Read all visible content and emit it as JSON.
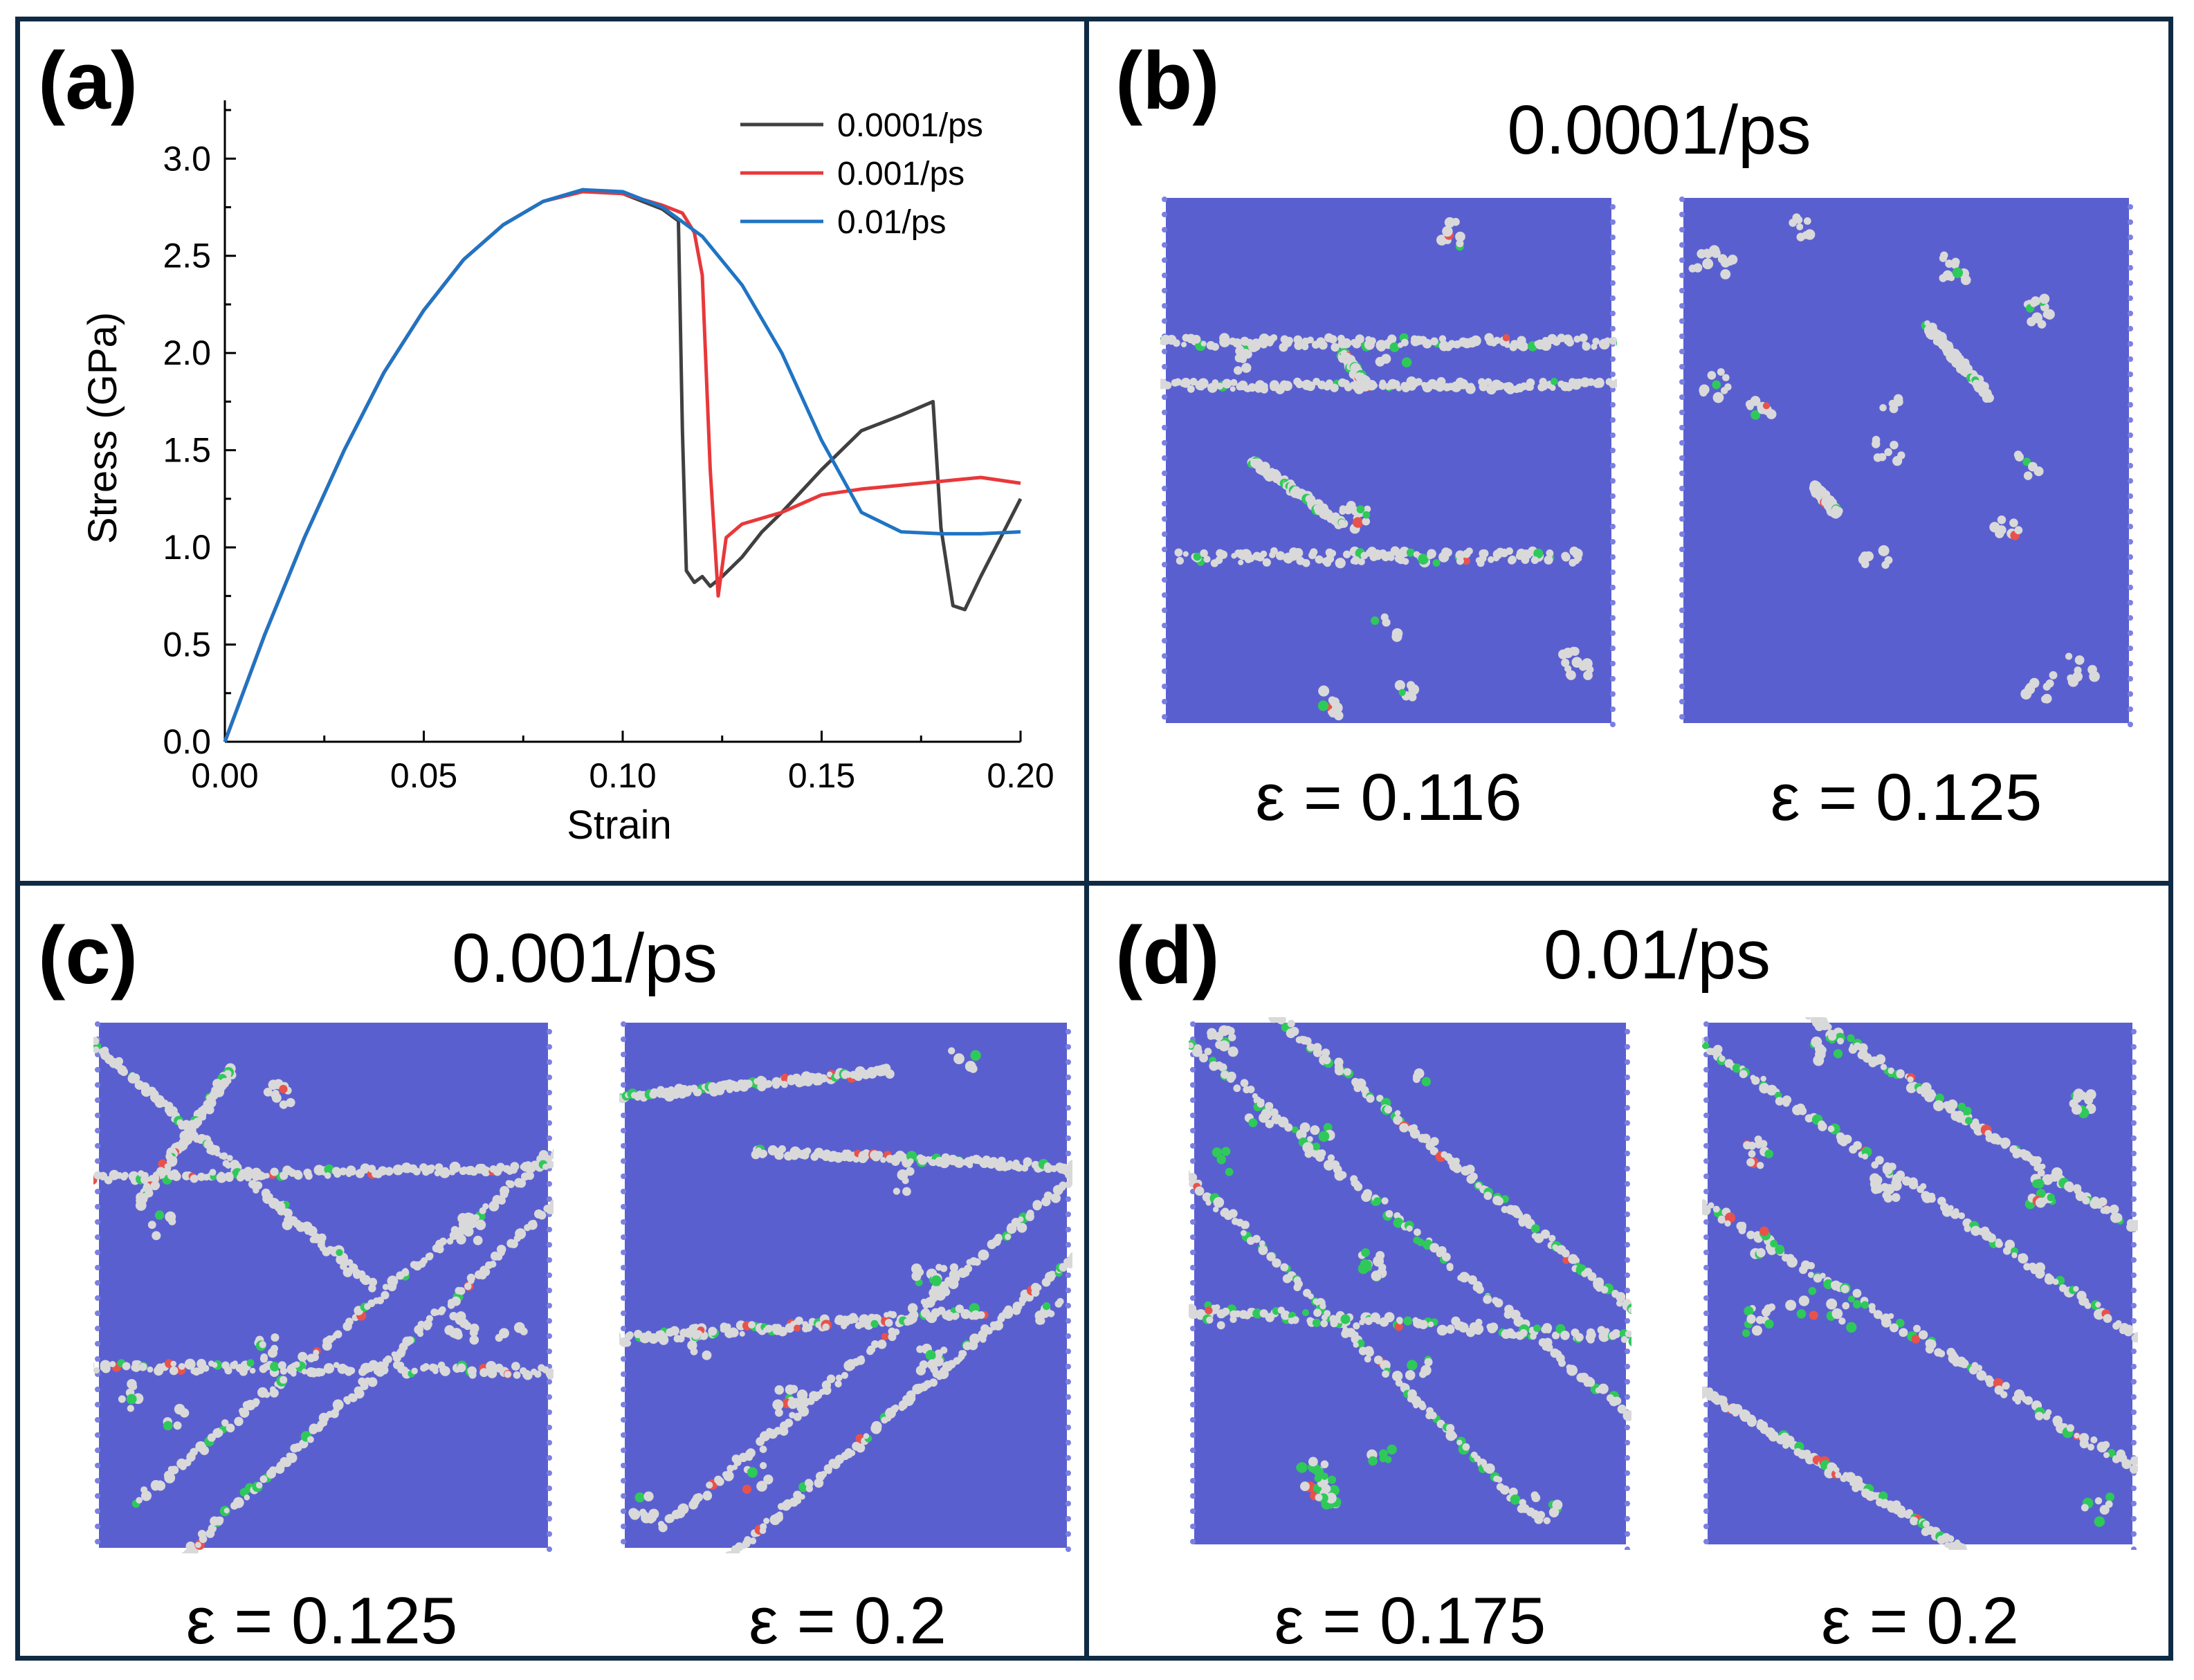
{
  "panels": {
    "a": {
      "label": "(a)"
    },
    "b": {
      "label": "(b)",
      "title": "0.0001/ps",
      "captions": [
        "ε = 0.116",
        "ε = 0.125"
      ]
    },
    "c": {
      "label": "(c)",
      "title": "0.001/ps",
      "captions": [
        "ε = 0.125",
        "ε = 0.2"
      ]
    },
    "d": {
      "label": "(d)",
      "title": "0.01/ps",
      "captions": [
        "ε = 0.175",
        "ε = 0.2"
      ]
    }
  },
  "colors": {
    "fcc": "#5a5fd0",
    "other": "#d9d9d9",
    "hcp": "#e8524c",
    "bcc": "#2fc95a",
    "border": "#0f2a44"
  },
  "chart_data": {
    "type": "line",
    "title": "",
    "xlabel": "Strain",
    "ylabel": "Stress (GPa)",
    "xlim": [
      0,
      0.2
    ],
    "ylim": [
      0,
      3.3
    ],
    "xticks": [
      0.0,
      0.05,
      0.1,
      0.15,
      0.2
    ],
    "xtick_labels": [
      "0.00",
      "0.05",
      "0.10",
      "0.15",
      "0.20"
    ],
    "yticks": [
      0.0,
      0.5,
      1.0,
      1.5,
      2.0,
      2.5,
      3.0
    ],
    "ytick_labels": [
      "0.0",
      "0.5",
      "1.0",
      "1.5",
      "2.0",
      "2.5",
      "3.0"
    ],
    "legend_position": "top-right",
    "series": [
      {
        "name": "0.0001/ps",
        "color": "#404040",
        "x": [
          0,
          0.01,
          0.02,
          0.03,
          0.04,
          0.05,
          0.06,
          0.07,
          0.08,
          0.09,
          0.1,
          0.11,
          0.114,
          0.115,
          0.116,
          0.118,
          0.12,
          0.122,
          0.125,
          0.13,
          0.135,
          0.14,
          0.15,
          0.16,
          0.17,
          0.178,
          0.18,
          0.183,
          0.186,
          0.19,
          0.195,
          0.2
        ],
        "y": [
          0,
          0.55,
          1.05,
          1.5,
          1.9,
          2.22,
          2.48,
          2.66,
          2.78,
          2.84,
          2.82,
          2.74,
          2.68,
          1.6,
          0.88,
          0.82,
          0.85,
          0.8,
          0.85,
          0.95,
          1.08,
          1.18,
          1.4,
          1.6,
          1.68,
          1.75,
          1.1,
          0.7,
          0.68,
          0.85,
          1.05,
          1.25
        ]
      },
      {
        "name": "0.001/ps",
        "color": "#e8383a",
        "x": [
          0,
          0.01,
          0.02,
          0.03,
          0.04,
          0.05,
          0.06,
          0.07,
          0.08,
          0.09,
          0.1,
          0.11,
          0.115,
          0.118,
          0.12,
          0.122,
          0.124,
          0.126,
          0.13,
          0.14,
          0.15,
          0.16,
          0.17,
          0.18,
          0.19,
          0.2
        ],
        "y": [
          0,
          0.55,
          1.05,
          1.5,
          1.9,
          2.22,
          2.48,
          2.66,
          2.78,
          2.83,
          2.82,
          2.76,
          2.72,
          2.62,
          2.4,
          1.4,
          0.75,
          1.05,
          1.12,
          1.18,
          1.27,
          1.3,
          1.32,
          1.34,
          1.36,
          1.33
        ]
      },
      {
        "name": "0.01/ps",
        "color": "#1f74c4",
        "x": [
          0,
          0.01,
          0.02,
          0.03,
          0.04,
          0.05,
          0.06,
          0.07,
          0.08,
          0.09,
          0.1,
          0.11,
          0.12,
          0.13,
          0.14,
          0.15,
          0.16,
          0.17,
          0.18,
          0.19,
          0.2
        ],
        "y": [
          0,
          0.55,
          1.05,
          1.5,
          1.9,
          2.22,
          2.48,
          2.66,
          2.78,
          2.84,
          2.83,
          2.75,
          2.6,
          2.35,
          2.0,
          1.55,
          1.18,
          1.08,
          1.07,
          1.07,
          1.08
        ]
      }
    ]
  }
}
